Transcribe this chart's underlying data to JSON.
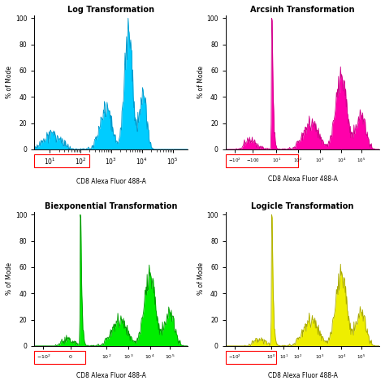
{
  "titles": [
    "Log Transformation",
    "Arcsinh Transformation",
    "Biexponential Transformation",
    "Logicle Transformation"
  ],
  "fill_colors": [
    "#00CCFF",
    "#FF00AA",
    "#00EE00",
    "#EEEE00"
  ],
  "edge_colors": [
    "#0099CC",
    "#CC0088",
    "#009900",
    "#AAAA00"
  ],
  "xlabel": "CD8 Alexa Fluor 488-A",
  "ylabel": "% of Mode",
  "background": "#FFFFFF",
  "rect_color": "red"
}
